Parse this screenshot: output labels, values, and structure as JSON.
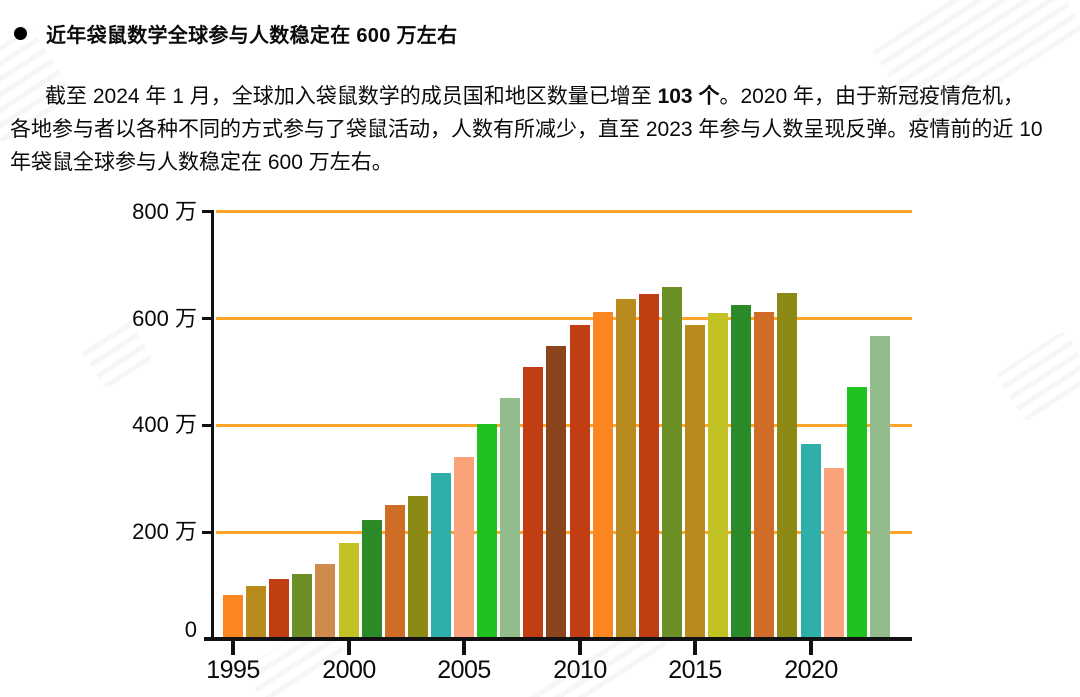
{
  "header": {
    "bullet_title": "近年袋鼠数学全球参与人数稳定在 600 万左右",
    "paragraph": {
      "line1_pre": "截至 2024 年 1 月，全球加入袋鼠数学的成员国和地区数量已增至 ",
      "line1_bold": "103 个",
      "line1_post": "。2020 年，由于新冠疫情危机，",
      "line2": "各地参与者以各种不同的方式参与了袋鼠活动，人数有所减少，直至 2023 年参与人数呈现反弹。疫情前的近 10",
      "line3": "年袋鼠全球参与人数稳定在 600 万左右。"
    }
  },
  "chart_data": {
    "type": "bar",
    "title": "",
    "xlabel": "",
    "ylabel": "",
    "unit": "万",
    "ylim": [
      0,
      800
    ],
    "grid": true,
    "grid_color": "#FFA429",
    "axis_color": "#111111",
    "legend": "none",
    "x": [
      1995,
      1996,
      1997,
      1998,
      1999,
      2000,
      2001,
      2002,
      2003,
      2004,
      2005,
      2006,
      2007,
      2008,
      2009,
      2010,
      2011,
      2012,
      2013,
      2014,
      2015,
      2016,
      2017,
      2018,
      2019,
      2020,
      2021,
      2022,
      2023
    ],
    "values": [
      82,
      99,
      112,
      121,
      140,
      179,
      222,
      250,
      268,
      310,
      340,
      402,
      452,
      510,
      548,
      588,
      612,
      637,
      646,
      660,
      588,
      611,
      626,
      612,
      648,
      365,
      320,
      472,
      567
    ],
    "bar_colors": [
      "#FB8622",
      "#B98B1E",
      "#C13E12",
      "#6C8F28",
      "#CE8B4D",
      "#C3C224",
      "#2A8B28",
      "#CF6C25",
      "#8A8A14",
      "#2FAFA9",
      "#FAA27A",
      "#1FC220",
      "#93BC8D",
      "#C13E12",
      "#8B441C",
      "#C13E12",
      "#FB8622",
      "#B98B1E",
      "#C13E12",
      "#6C8F28",
      "#B98B1E",
      "#C3C224",
      "#2A8B28",
      "#CF6C25",
      "#8A8A14",
      "#2FAFA9",
      "#FAA27A",
      "#1FC220",
      "#93BC8D"
    ],
    "yticks": [
      {
        "value": 0,
        "label": "0"
      },
      {
        "value": 200,
        "label": "200 万"
      },
      {
        "value": 400,
        "label": "400 万"
      },
      {
        "value": 600,
        "label": "600 万"
      },
      {
        "value": 800,
        "label": "800 万"
      }
    ],
    "xticks": [
      {
        "value": 1995,
        "label": "1995"
      },
      {
        "value": 2000,
        "label": "2000"
      },
      {
        "value": 2005,
        "label": "2005"
      },
      {
        "value": 2010,
        "label": "2010"
      },
      {
        "value": 2015,
        "label": "2015"
      },
      {
        "value": 2020,
        "label": "2020"
      }
    ]
  }
}
